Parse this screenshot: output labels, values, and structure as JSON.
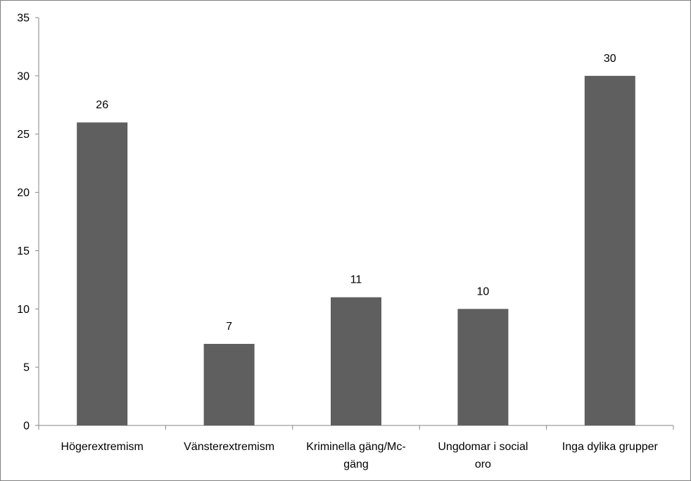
{
  "chart_data": {
    "type": "bar",
    "categories": [
      [
        "Högerextremism"
      ],
      [
        "Vänsterextremism"
      ],
      [
        "Kriminella gäng/Mc-",
        "gäng"
      ],
      [
        "Ungdomar i social",
        "oro"
      ],
      [
        "Inga dylika grupper"
      ]
    ],
    "values": [
      26,
      7,
      11,
      10,
      30
    ],
    "data_labels": [
      "26",
      "7",
      "11",
      "10",
      "30"
    ],
    "ylim": [
      0,
      35
    ],
    "yticks": [
      0,
      5,
      10,
      15,
      20,
      25,
      30,
      35
    ],
    "title": "",
    "xlabel": "",
    "ylabel": "",
    "grid": false,
    "legend": "none",
    "colors": {
      "bar": "#5f5f5f",
      "axis": "#868686",
      "border": "#7f7f7f"
    }
  }
}
